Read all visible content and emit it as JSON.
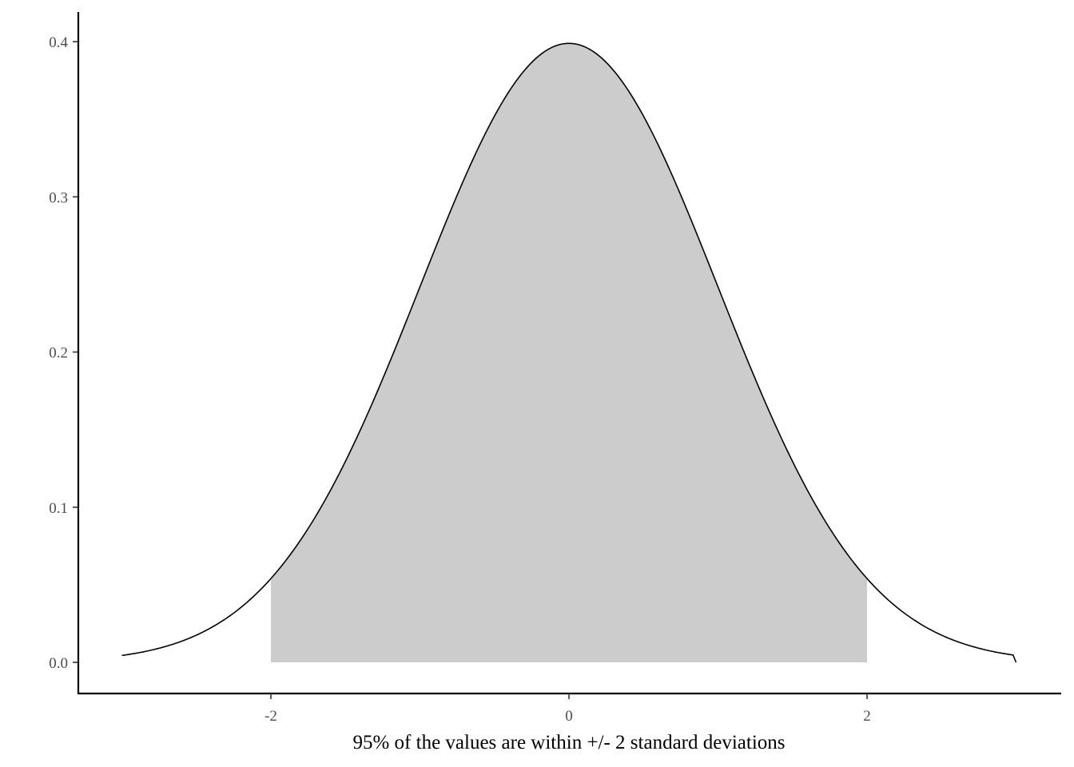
{
  "chart_data": {
    "type": "area",
    "distribution": "standard normal density",
    "xlim": [
      -3,
      3
    ],
    "ylim": [
      0,
      0.4
    ],
    "x_ticks": [
      {
        "value": -2,
        "label": "-2"
      },
      {
        "value": 0,
        "label": "0"
      },
      {
        "value": 2,
        "label": "2"
      }
    ],
    "y_ticks": [
      {
        "value": 0.0,
        "label": "0.0"
      },
      {
        "value": 0.1,
        "label": "0.1"
      },
      {
        "value": 0.2,
        "label": "0.2"
      },
      {
        "value": 0.3,
        "label": "0.3"
      },
      {
        "value": 0.4,
        "label": "0.4"
      }
    ],
    "curve": {
      "x": [
        -3,
        -2.75,
        -2.5,
        -2.25,
        -2,
        -1.75,
        -1.5,
        -1.25,
        -1,
        -0.75,
        -0.5,
        -0.25,
        0,
        0.25,
        0.5,
        0.75,
        1,
        1.25,
        1.5,
        1.75,
        2,
        2.25,
        2.5,
        2.75,
        3
      ],
      "y": [
        0.0044,
        0.0091,
        0.0175,
        0.0317,
        0.054,
        0.0863,
        0.1295,
        0.1826,
        0.242,
        0.3011,
        0.3521,
        0.3867,
        0.3989,
        0.3867,
        0.3521,
        0.3011,
        0.242,
        0.1826,
        0.1295,
        0.0863,
        0.054,
        0.0317,
        0.0175,
        0.0091,
        0.0044
      ]
    },
    "shaded_region": {
      "from": -2,
      "to": 2
    },
    "xlabel": "95% of the values are within +/- 2 standard deviations",
    "ylabel": "",
    "grid": false,
    "colors": {
      "line": "#000000",
      "fill": "#cccccc",
      "axis": "#000000",
      "tick_text": "#4d4d4d"
    }
  }
}
